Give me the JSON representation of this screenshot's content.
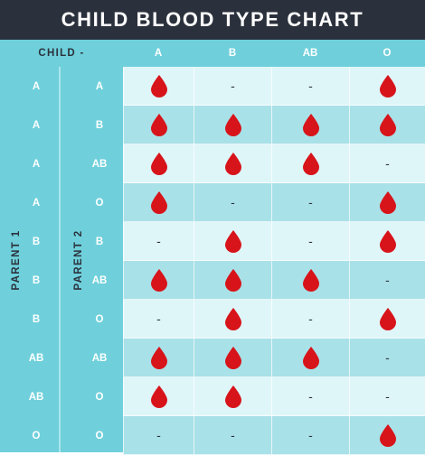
{
  "title": "CHILD BLOOD TYPE CHART",
  "child_label": "CHILD  -",
  "child_types": [
    "A",
    "B",
    "AB",
    "O"
  ],
  "parent1_label": "PARENT 1",
  "parent2_label": "PARENT 2",
  "possible_symbol": "drop-icon",
  "not_possible_symbol": "-",
  "colors": {
    "header": "#2b313c",
    "accent": "#6fd0db",
    "drop": "#d7141a",
    "row_light": "#dff6f9",
    "row_dark": "#a9e1e8"
  },
  "rows": [
    {
      "parent1": "A",
      "parent2": "A",
      "possible": [
        true,
        false,
        false,
        true
      ]
    },
    {
      "parent1": "A",
      "parent2": "B",
      "possible": [
        true,
        true,
        true,
        true
      ]
    },
    {
      "parent1": "A",
      "parent2": "AB",
      "possible": [
        true,
        true,
        true,
        false
      ]
    },
    {
      "parent1": "A",
      "parent2": "O",
      "possible": [
        true,
        false,
        false,
        true
      ]
    },
    {
      "parent1": "B",
      "parent2": "B",
      "possible": [
        false,
        true,
        false,
        true
      ]
    },
    {
      "parent1": "B",
      "parent2": "AB",
      "possible": [
        true,
        true,
        true,
        false
      ]
    },
    {
      "parent1": "B",
      "parent2": "O",
      "possible": [
        false,
        true,
        false,
        true
      ]
    },
    {
      "parent1": "AB",
      "parent2": "AB",
      "possible": [
        true,
        true,
        true,
        false
      ]
    },
    {
      "parent1": "AB",
      "parent2": "O",
      "possible": [
        true,
        true,
        false,
        false
      ]
    },
    {
      "parent1": "O",
      "parent2": "O",
      "possible": [
        false,
        false,
        false,
        true
      ]
    }
  ]
}
